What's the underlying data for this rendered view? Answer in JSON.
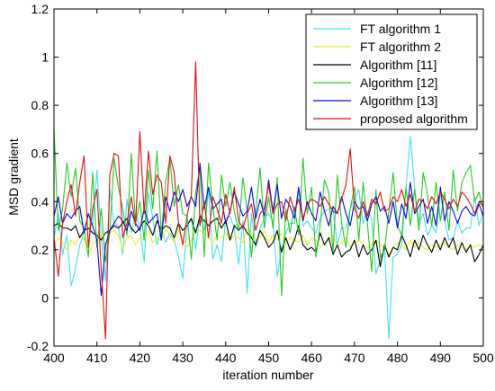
{
  "chart_data": {
    "type": "line",
    "title": "",
    "xlabel": "iteration number",
    "ylabel": "MSD gradient",
    "xlim": [
      400,
      500
    ],
    "ylim": [
      -0.2,
      1.2
    ],
    "xticks": [
      400,
      410,
      420,
      430,
      440,
      450,
      460,
      470,
      480,
      490,
      500
    ],
    "yticks": [
      -0.2,
      0,
      0.2,
      0.4,
      0.6,
      0.8,
      1,
      1.2
    ],
    "ytick_labels": [
      "-0.2",
      "0",
      "0.2",
      "0.4",
      "0.6",
      "0.8",
      "1",
      "1.2"
    ],
    "grid": false,
    "legend_position": "top-right",
    "x": [
      400,
      401,
      402,
      403,
      404,
      405,
      406,
      407,
      408,
      409,
      410,
      411,
      412,
      413,
      414,
      415,
      416,
      417,
      418,
      419,
      420,
      421,
      422,
      423,
      424,
      425,
      426,
      427,
      428,
      429,
      430,
      431,
      432,
      433,
      434,
      435,
      436,
      437,
      438,
      439,
      440,
      441,
      442,
      443,
      444,
      445,
      446,
      447,
      448,
      449,
      450,
      451,
      452,
      453,
      454,
      455,
      456,
      457,
      458,
      459,
      460,
      461,
      462,
      463,
      464,
      465,
      466,
      467,
      468,
      469,
      470,
      471,
      472,
      473,
      474,
      475,
      476,
      477,
      478,
      479,
      480,
      481,
      482,
      483,
      484,
      485,
      486,
      487,
      488,
      489,
      490,
      491,
      492,
      493,
      494,
      495,
      496,
      497,
      498,
      499,
      500
    ],
    "series": [
      {
        "name": "FT algorithm 1",
        "color": "#40e0f0",
        "values": [
          0.25,
          0.35,
          0.18,
          0.26,
          0.05,
          0.12,
          0.22,
          0.27,
          0.35,
          0.3,
          0.53,
          0.26,
          0.07,
          0.45,
          0.31,
          0.3,
          0.18,
          0.41,
          0.27,
          0.35,
          0.29,
          0.15,
          0.44,
          0.33,
          0.22,
          0.29,
          0.23,
          0.27,
          0.24,
          0.17,
          0.08,
          0.31,
          0.33,
          0.2,
          0.35,
          0.28,
          0.45,
          0.16,
          0.22,
          0.15,
          0.33,
          0.34,
          0.29,
          0.14,
          0.32,
          0.02,
          0.35,
          0.21,
          0.29,
          0.33,
          0.35,
          0.32,
          0.09,
          0.2,
          0.27,
          0.31,
          0.31,
          0.45,
          0.3,
          0.32,
          0.29,
          0.27,
          0.33,
          0.36,
          0.37,
          0.37,
          0.22,
          0.29,
          0.29,
          0.37,
          0.41,
          0.45,
          0.31,
          0.36,
          0.33,
          0.1,
          0.16,
          0.2,
          -0.17,
          0.17,
          0.18,
          0.22,
          0.46,
          0.67,
          0.46,
          0.31,
          0.35,
          0.26,
          0.3,
          0.27,
          0.44,
          0.32,
          0.24,
          0.25,
          0.32,
          0.27,
          0.29,
          0.29,
          0.42,
          0.3,
          0.36
        ]
      },
      {
        "name": "FT algorithm 2",
        "color": "#e8f020",
        "values": [
          0.22,
          0.25,
          0.23,
          0.2,
          0.24,
          0.22,
          0.26,
          0.25,
          0.18,
          0.22,
          0.24,
          0.26,
          0.22,
          0.27,
          0.28,
          0.26,
          0.2,
          0.25,
          0.26,
          0.22,
          0.25,
          0.24,
          0.28,
          0.23,
          0.25,
          0.24,
          0.29,
          0.26,
          0.23,
          0.28,
          0.25,
          0.21,
          0.24,
          0.27,
          0.28,
          0.27,
          0.25,
          0.23,
          0.26,
          0.25,
          0.27,
          0.24,
          0.26,
          0.25,
          0.23,
          0.29,
          0.26,
          0.24,
          0.25,
          0.28,
          0.23,
          0.26,
          0.24,
          0.27,
          0.22,
          0.25,
          0.24,
          0.23,
          0.26,
          0.22,
          0.25,
          0.24,
          0.21,
          0.23,
          0.24,
          0.26,
          0.22,
          0.23,
          0.25,
          0.21,
          0.23,
          0.24,
          0.22,
          0.21,
          0.22,
          0.24,
          0.22,
          0.21,
          0.18,
          0.21,
          0.23,
          0.22,
          0.2,
          0.24,
          0.21,
          0.23,
          0.21,
          0.2,
          0.22,
          0.21,
          0.22,
          0.23,
          0.21,
          0.2,
          0.22,
          0.21,
          0.2,
          0.22,
          0.21,
          0.22,
          0.22
        ]
      },
      {
        "name": "Algorithm [11]",
        "color": "#000000",
        "values": [
          0.3,
          0.31,
          0.29,
          0.29,
          0.28,
          0.3,
          0.25,
          0.28,
          0.29,
          0.27,
          0.26,
          0.24,
          0.27,
          0.28,
          0.3,
          0.29,
          0.31,
          0.33,
          0.29,
          0.27,
          0.29,
          0.32,
          0.3,
          0.26,
          0.32,
          0.28,
          0.3,
          0.29,
          0.25,
          0.31,
          0.28,
          0.3,
          0.33,
          0.27,
          0.34,
          0.32,
          0.3,
          0.32,
          0.33,
          0.29,
          0.32,
          0.24,
          0.3,
          0.28,
          0.3,
          0.27,
          0.25,
          0.22,
          0.28,
          0.25,
          0.21,
          0.23,
          0.28,
          0.19,
          0.25,
          0.2,
          0.24,
          0.3,
          0.22,
          0.2,
          0.21,
          0.19,
          0.27,
          0.22,
          0.25,
          0.18,
          0.22,
          0.17,
          0.19,
          0.2,
          0.24,
          0.17,
          0.22,
          0.18,
          0.2,
          0.24,
          0.13,
          0.22,
          0.17,
          0.21,
          0.2,
          0.26,
          0.22,
          0.17,
          0.24,
          0.2,
          0.26,
          0.22,
          0.19,
          0.24,
          0.2,
          0.25,
          0.21,
          0.25,
          0.18,
          0.23,
          0.19,
          0.22,
          0.15,
          0.18,
          0.22
        ]
      },
      {
        "name": "Algorithm [12]",
        "color": "#22cc22",
        "values": [
          0.7,
          0.28,
          0.37,
          0.56,
          0.42,
          0.54,
          0.32,
          0.29,
          0.17,
          0.52,
          0.21,
          0.37,
          0.15,
          0.27,
          0.58,
          0.46,
          0.37,
          0.26,
          0.6,
          0.31,
          0.4,
          0.24,
          0.53,
          0.37,
          0.61,
          0.26,
          0.48,
          0.58,
          0.38,
          0.47,
          0.35,
          0.34,
          0.16,
          0.44,
          0.54,
          0.17,
          0.56,
          0.38,
          0.24,
          0.51,
          0.38,
          0.48,
          0.36,
          0.28,
          0.5,
          0.36,
          0.17,
          0.36,
          0.54,
          0.29,
          0.42,
          0.29,
          0.5,
          0.01,
          0.37,
          0.27,
          0.38,
          0.26,
          0.58,
          0.35,
          0.46,
          0.17,
          0.3,
          0.49,
          0.44,
          0.19,
          0.51,
          0.31,
          0.21,
          0.37,
          0.46,
          0.24,
          0.48,
          0.31,
          0.11,
          0.45,
          0.17,
          0.2,
          0.36,
          0.52,
          0.3,
          0.26,
          0.46,
          0.3,
          0.45,
          0.28,
          0.52,
          0.43,
          0.3,
          0.48,
          0.32,
          0.44,
          0.28,
          0.53,
          0.36,
          0.48,
          0.52,
          0.55,
          0.4,
          0.44,
          0.37
        ]
      },
      {
        "name": "Algorithm [13]",
        "color": "#0a0ad0",
        "values": [
          0.34,
          0.42,
          0.31,
          0.35,
          0.33,
          0.36,
          0.38,
          0.27,
          0.35,
          0.3,
          0.24,
          0.01,
          0.22,
          0.28,
          0.31,
          0.34,
          0.32,
          0.28,
          0.36,
          0.31,
          0.28,
          0.37,
          0.31,
          0.33,
          0.35,
          0.24,
          0.42,
          0.36,
          0.44,
          0.4,
          0.45,
          0.38,
          0.42,
          0.38,
          0.56,
          0.37,
          0.46,
          0.37,
          0.39,
          0.41,
          0.31,
          0.36,
          0.44,
          0.39,
          0.34,
          0.36,
          0.46,
          0.33,
          0.41,
          0.34,
          0.49,
          0.36,
          0.47,
          0.33,
          0.41,
          0.38,
          0.33,
          0.46,
          0.32,
          0.4,
          0.35,
          0.32,
          0.44,
          0.36,
          0.3,
          0.38,
          0.35,
          0.42,
          0.35,
          0.3,
          0.4,
          0.37,
          0.38,
          0.32,
          0.39,
          0.42,
          0.36,
          0.38,
          0.31,
          0.4,
          0.29,
          0.39,
          0.33,
          0.48,
          0.35,
          0.38,
          0.41,
          0.31,
          0.38,
          0.3,
          0.46,
          0.32,
          0.4,
          0.36,
          0.31,
          0.36,
          0.38,
          0.35,
          0.34,
          0.39,
          0.34
        ]
      },
      {
        "name": "proposed algorithm",
        "color": "#dd1111",
        "values": [
          0.25,
          0.09,
          0.31,
          0.4,
          0.47,
          0.34,
          0.48,
          0.59,
          0.21,
          0.37,
          0.45,
          0.12,
          -0.17,
          0.51,
          0.6,
          0.59,
          0.25,
          0.31,
          0.42,
          0.3,
          0.69,
          0.35,
          0.61,
          0.43,
          0.51,
          0.48,
          0.31,
          0.59,
          0.52,
          0.31,
          0.22,
          0.34,
          0.43,
          0.98,
          0.3,
          0.4,
          0.25,
          0.42,
          0.37,
          0.31,
          0.43,
          0.35,
          0.46,
          0.32,
          0.29,
          0.35,
          0.39,
          0.28,
          0.35,
          0.37,
          0.47,
          0.35,
          0.39,
          0.4,
          0.32,
          0.42,
          0.36,
          0.41,
          0.33,
          0.39,
          0.41,
          0.4,
          0.38,
          0.42,
          0.39,
          0.36,
          0.35,
          0.41,
          0.47,
          0.62,
          0.37,
          0.33,
          0.4,
          0.34,
          0.41,
          0.39,
          0.44,
          0.36,
          0.37,
          0.42,
          0.4,
          0.45,
          0.38,
          0.43,
          0.36,
          0.41,
          0.4,
          0.37,
          0.42,
          0.39,
          0.44,
          0.41,
          0.37,
          0.41,
          0.38,
          0.44,
          0.42,
          0.39,
          0.35,
          0.4,
          0.38
        ]
      }
    ]
  }
}
